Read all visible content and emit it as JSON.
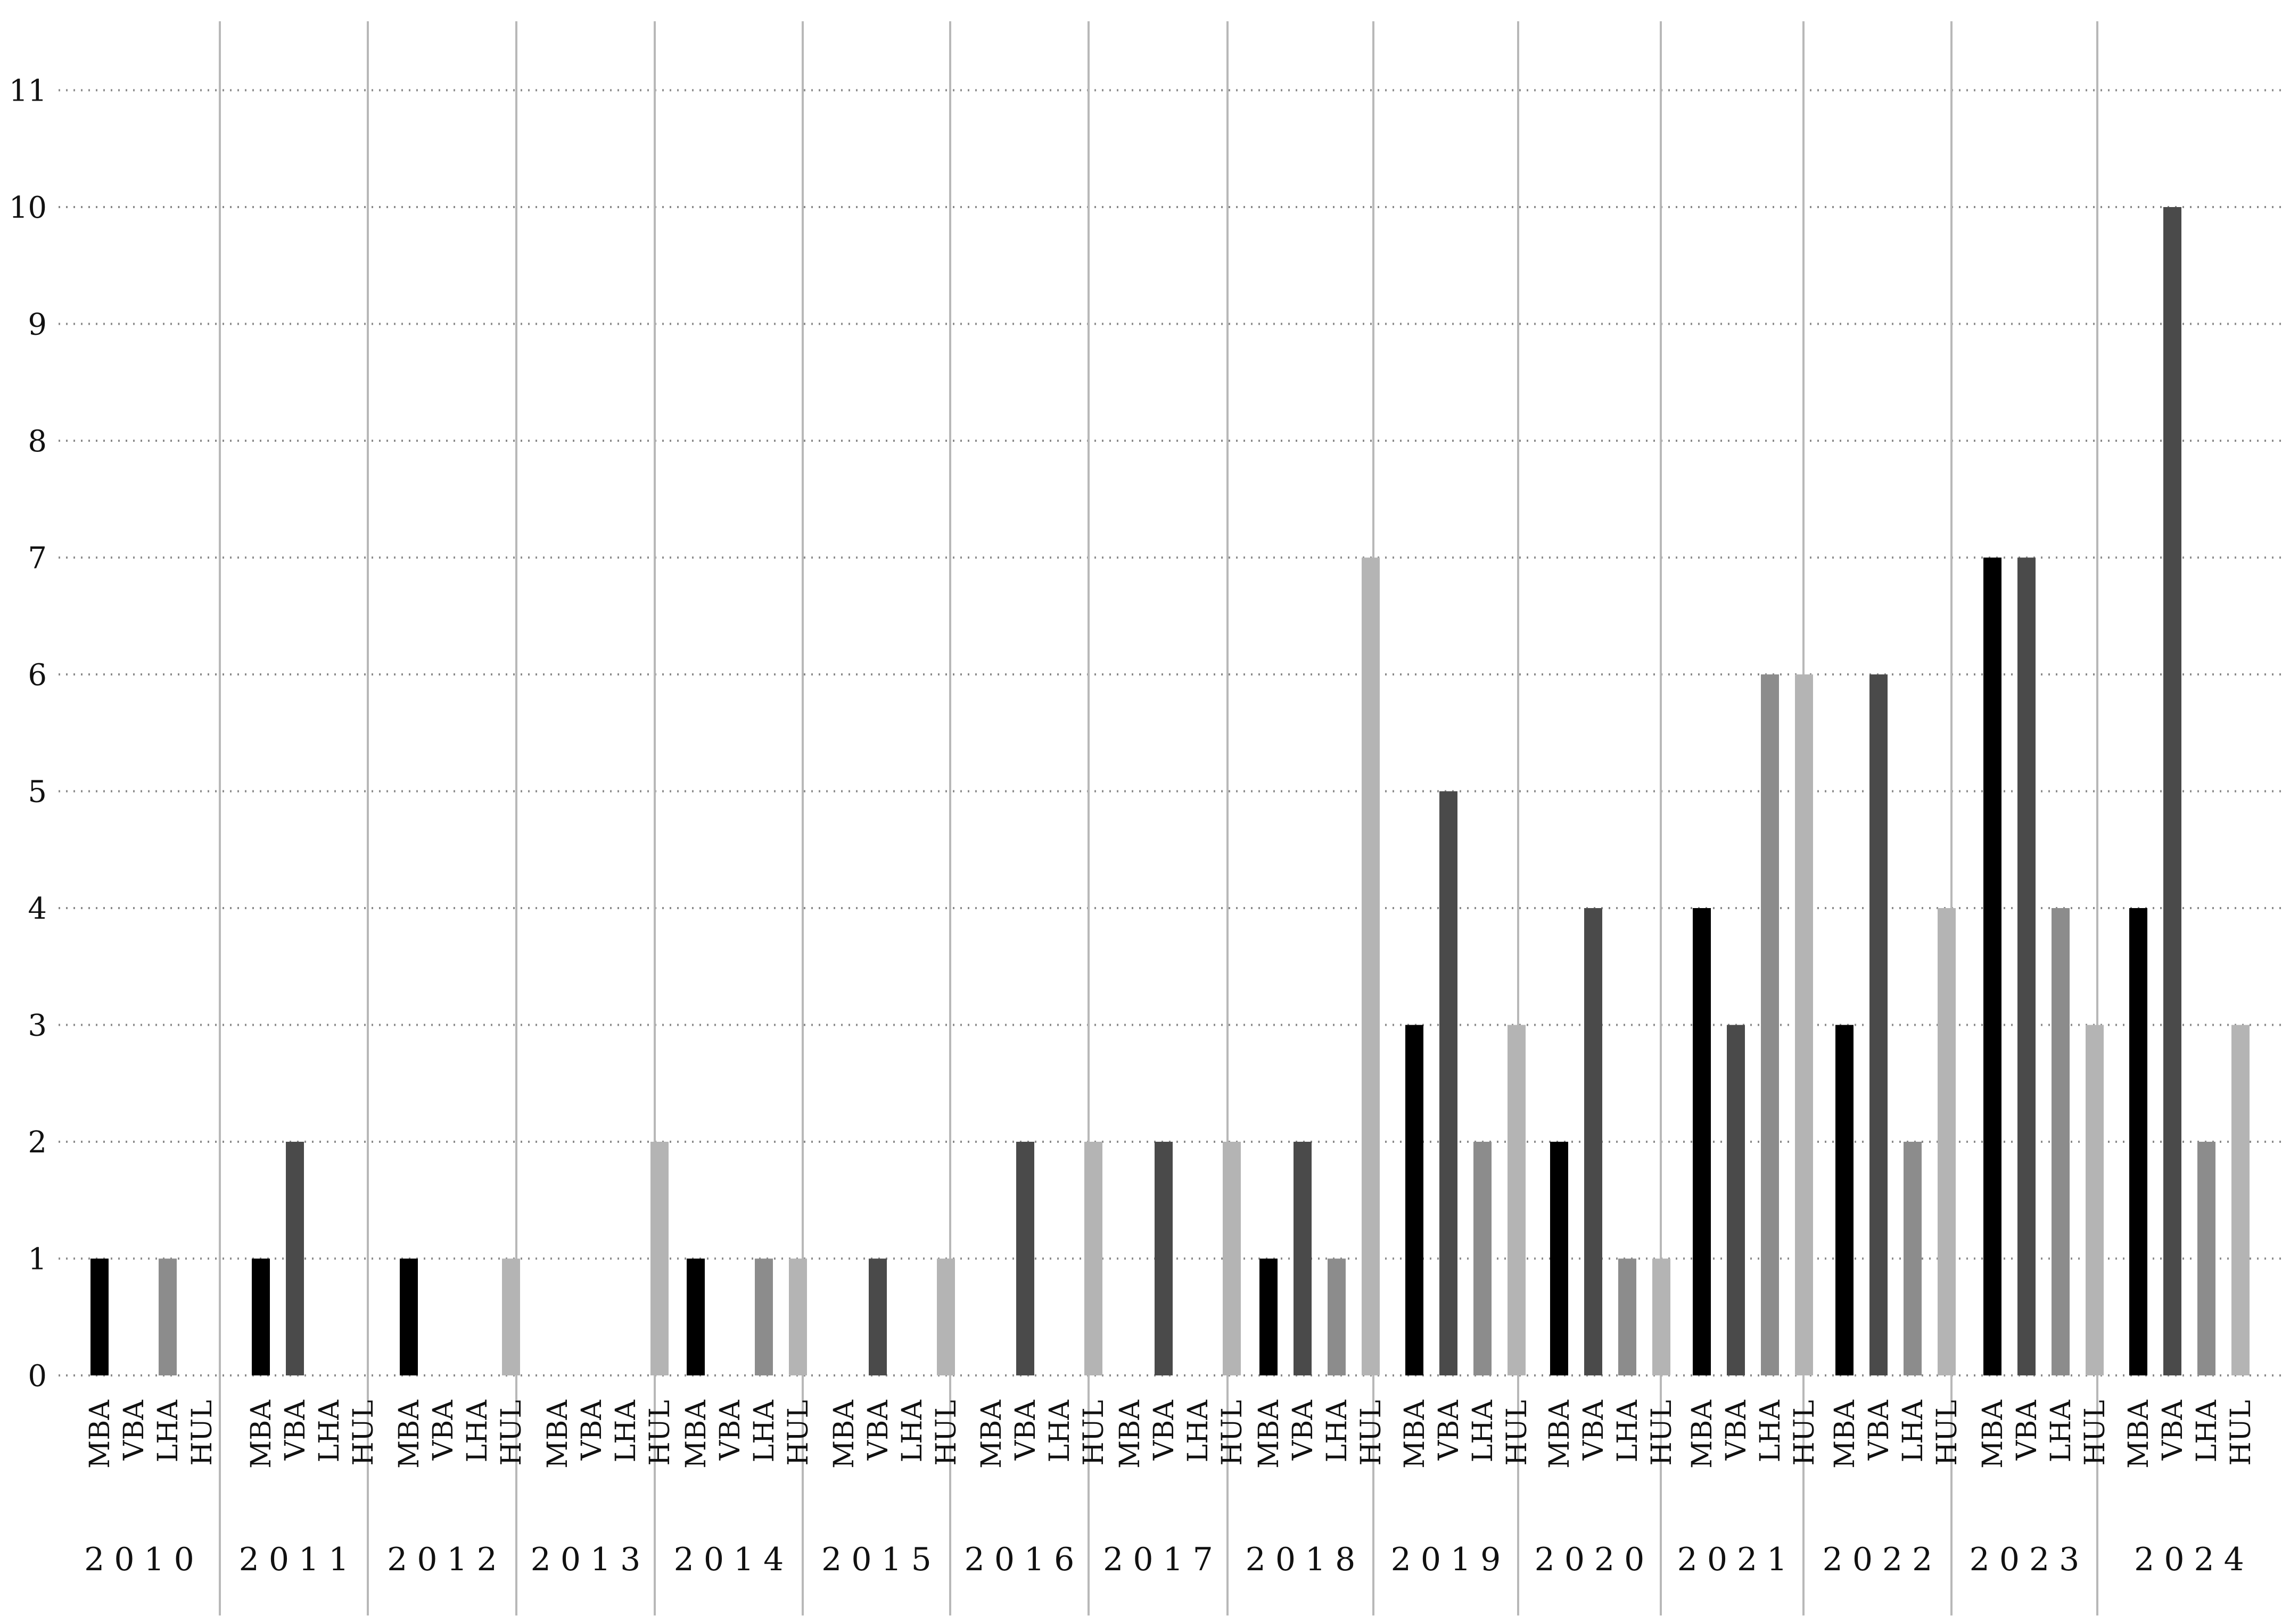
{
  "chart_data": {
    "type": "bar",
    "groups": [
      "2010",
      "2011",
      "2012",
      "2013",
      "2014",
      "2015",
      "2016",
      "2017",
      "2018",
      "2019",
      "2020",
      "2021",
      "2022",
      "2023",
      "2024"
    ],
    "categories": [
      "MBA",
      "VBA",
      "LHA",
      "HUL"
    ],
    "series_colors": [
      "#000000",
      "#4a4a4a",
      "#8c8c8c",
      "#b4b4b4"
    ],
    "values": [
      [
        1,
        0,
        1,
        0
      ],
      [
        1,
        2,
        0,
        0
      ],
      [
        1,
        0,
        0,
        1
      ],
      [
        0,
        0,
        0,
        2
      ],
      [
        1,
        0,
        1,
        1
      ],
      [
        0,
        1,
        0,
        1
      ],
      [
        0,
        2,
        0,
        2
      ],
      [
        0,
        2,
        0,
        2
      ],
      [
        1,
        2,
        1,
        7
      ],
      [
        3,
        5,
        2,
        3
      ],
      [
        2,
        4,
        1,
        1
      ],
      [
        4,
        3,
        6,
        6
      ],
      [
        3,
        6,
        2,
        4
      ],
      [
        7,
        7,
        4,
        3
      ],
      [
        4,
        10,
        2,
        3
      ]
    ],
    "ylim": [
      0,
      11
    ],
    "yticks": [
      "0",
      "1",
      "2",
      "3",
      "4",
      "5",
      "6",
      "7",
      "8",
      "9",
      "10",
      "11"
    ],
    "grid": "dotted horizontal",
    "title": "",
    "xlabel": "",
    "ylabel": ""
  }
}
